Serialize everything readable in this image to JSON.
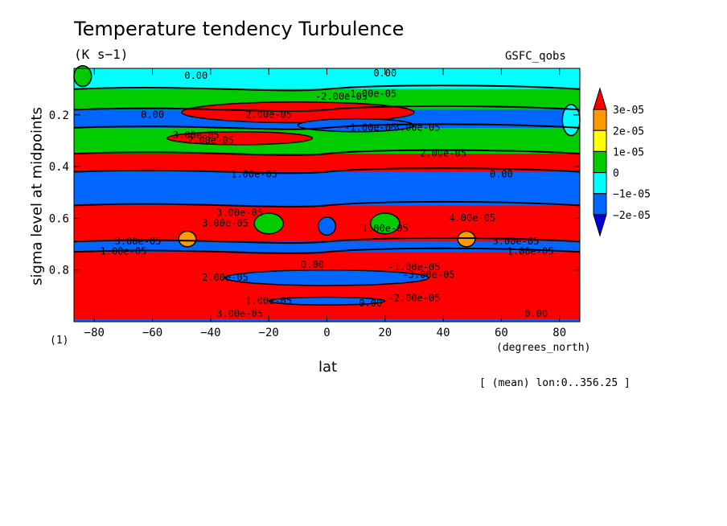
{
  "chart_data": {
    "type": "heatmap",
    "title": "Temperature tendency Turbulence",
    "units": "(K s−1)",
    "source": "GSFC_qobs",
    "xlabel": "lat",
    "xunits": "(degrees_north)",
    "ylabel": "sigma level at midpoints",
    "ynote": "(1)",
    "footnote": "[ (mean) lon:0..356.25 ]",
    "xlim": [
      -87,
      87
    ],
    "ylim": [
      1.0,
      0.02
    ],
    "xticks": [
      -80,
      -60,
      -40,
      -20,
      0,
      20,
      40,
      60,
      80
    ],
    "xtick_labels": [
      "−80",
      "−60",
      "−40",
      "−20",
      "0",
      "20",
      "40",
      "60",
      "80"
    ],
    "yticks": [
      0.2,
      0.4,
      0.6,
      0.8
    ],
    "ytick_labels": [
      "0.2",
      "0.4",
      "0.6",
      "0.8"
    ],
    "colorbar": {
      "levels": [
        "3e-05",
        "2e-05",
        "1e-05",
        "0",
        "−1e-05",
        "−2e-05"
      ],
      "colors": [
        "#ff0000",
        "#ff9900",
        "#ffff00",
        "#00cc00",
        "#00ffff",
        "#0066ff",
        "#0000dd"
      ]
    },
    "bands": [
      {
        "y0": 0.02,
        "y1": 0.1,
        "color": "#00ffff"
      },
      {
        "y0": 0.1,
        "y1": 0.18,
        "color": "#00cc00"
      },
      {
        "y0": 0.18,
        "y1": 0.25,
        "color": "#0066ff"
      },
      {
        "y0": 0.25,
        "y1": 0.35,
        "color": "#00cc00"
      },
      {
        "y0": 0.35,
        "y1": 0.42,
        "color": "#ff0000"
      },
      {
        "y0": 0.42,
        "y1": 0.55,
        "color": "#0066ff"
      },
      {
        "y0": 0.55,
        "y1": 0.69,
        "color": "#ff0000"
      },
      {
        "y0": 0.69,
        "y1": 0.73,
        "color": "#0066ff"
      },
      {
        "y0": 0.73,
        "y1": 0.99,
        "color": "#ff0000"
      }
    ],
    "patches": [
      {
        "x": -10,
        "y": 0.19,
        "w": 80,
        "h": 0.08,
        "color": "#ff0000"
      },
      {
        "x": 10,
        "y": 0.24,
        "w": 40,
        "h": 0.05,
        "color": "#0066ff"
      },
      {
        "x": -30,
        "y": 0.29,
        "w": 50,
        "h": 0.05,
        "color": "#ff0000"
      },
      {
        "x": 0,
        "y": 0.83,
        "w": 70,
        "h": 0.06,
        "color": "#0066ff"
      },
      {
        "x": 0,
        "y": 0.92,
        "w": 40,
        "h": 0.03,
        "color": "#0066ff"
      },
      {
        "x": -20,
        "y": 0.62,
        "w": 10,
        "h": 0.08,
        "color": "#00cc00"
      },
      {
        "x": 20,
        "y": 0.62,
        "w": 10,
        "h": 0.08,
        "color": "#00cc00"
      },
      {
        "x": 0,
        "y": 0.63,
        "w": 6,
        "h": 0.07,
        "color": "#0066ff"
      },
      {
        "x": -48,
        "y": 0.68,
        "w": 6,
        "h": 0.06,
        "color": "#ff9900"
      },
      {
        "x": 48,
        "y": 0.68,
        "w": 6,
        "h": 0.06,
        "color": "#ff9900"
      },
      {
        "x": 84,
        "y": 0.22,
        "w": 6,
        "h": 0.12,
        "color": "#00ffff"
      },
      {
        "x": -84,
        "y": 0.05,
        "w": 6,
        "h": 0.08,
        "color": "#00cc00"
      }
    ],
    "contour_labels": [
      {
        "x": -45,
        "y": 0.05,
        "text": "0.00"
      },
      {
        "x": 20,
        "y": 0.04,
        "text": "0.00"
      },
      {
        "x": -60,
        "y": 0.2,
        "text": "0.00"
      },
      {
        "x": 5,
        "y": 0.13,
        "text": "-2.00e-05"
      },
      {
        "x": 15,
        "y": 0.12,
        "text": "-1.00e-05"
      },
      {
        "x": -20,
        "y": 0.2,
        "text": "2.00e-05"
      },
      {
        "x": 15,
        "y": 0.25,
        "text": "-1.00e-05"
      },
      {
        "x": 30,
        "y": 0.25,
        "text": "-3.00e-05"
      },
      {
        "x": -45,
        "y": 0.28,
        "text": "3.00e-05"
      },
      {
        "x": -40,
        "y": 0.3,
        "text": "2.00e-05"
      },
      {
        "x": 40,
        "y": 0.35,
        "text": "2.00e-05"
      },
      {
        "x": -25,
        "y": 0.43,
        "text": "1.00e-05"
      },
      {
        "x": 60,
        "y": 0.43,
        "text": "0.00"
      },
      {
        "x": -30,
        "y": 0.58,
        "text": "3.00e-05"
      },
      {
        "x": -35,
        "y": 0.62,
        "text": "3.00e-05"
      },
      {
        "x": 50,
        "y": 0.6,
        "text": "4.00e-05"
      },
      {
        "x": 20,
        "y": 0.64,
        "text": "1.00e-05"
      },
      {
        "x": -65,
        "y": 0.69,
        "text": "3.00e-05"
      },
      {
        "x": 65,
        "y": 0.69,
        "text": "3.00e-05"
      },
      {
        "x": -70,
        "y": 0.73,
        "text": "1.00e-05"
      },
      {
        "x": 70,
        "y": 0.73,
        "text": "1.00e-05"
      },
      {
        "x": -5,
        "y": 0.78,
        "text": "0.00"
      },
      {
        "x": 30,
        "y": 0.79,
        "text": "-1.00e-05"
      },
      {
        "x": -35,
        "y": 0.83,
        "text": "2.00e-05"
      },
      {
        "x": 35,
        "y": 0.82,
        "text": "-3.00e-05"
      },
      {
        "x": -20,
        "y": 0.92,
        "text": "1.00e-05"
      },
      {
        "x": 15,
        "y": 0.93,
        "text": "0.00"
      },
      {
        "x": 30,
        "y": 0.91,
        "text": "-2.00e-05"
      },
      {
        "x": -30,
        "y": 0.97,
        "text": "3.00e-05"
      },
      {
        "x": 72,
        "y": 0.97,
        "text": "0.00"
      }
    ]
  }
}
